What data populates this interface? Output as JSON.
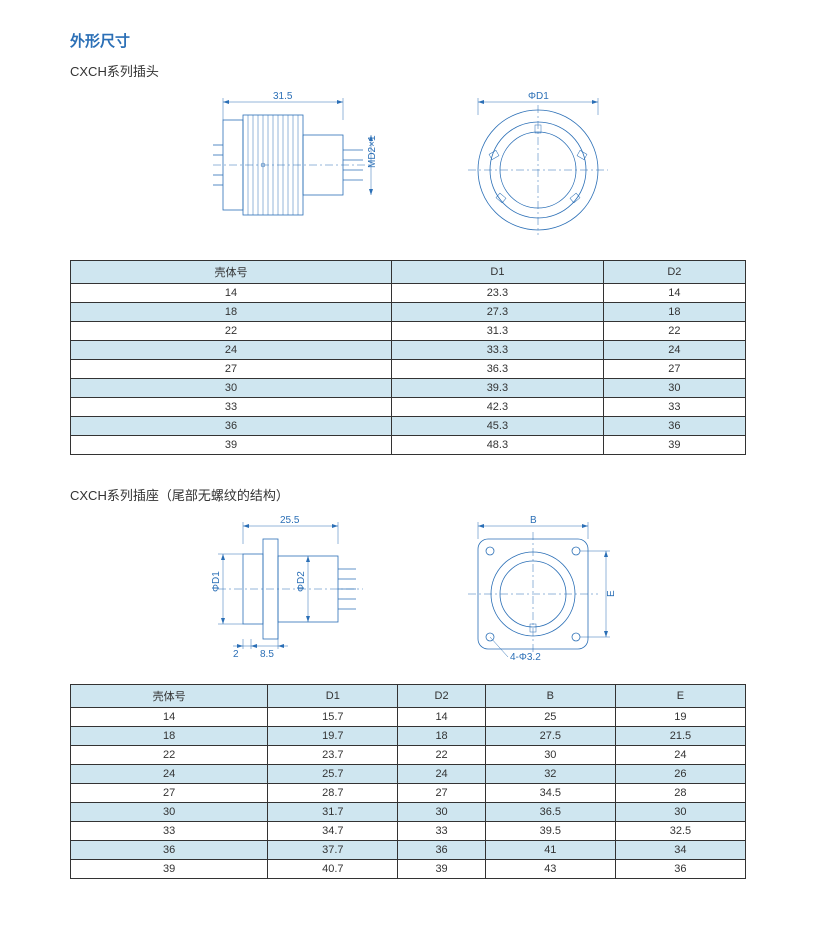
{
  "page": {
    "title": "外形尺寸",
    "section1_title": "CXCH系列插头",
    "section2_title": "CXCH系列插座（尾部无螺纹的结构）"
  },
  "diagram1": {
    "dim_top": "31.5",
    "dim_right": "MD2×1",
    "dim_phi": "ΦD1"
  },
  "diagram2": {
    "dim_top": "25.5",
    "dim_left": "ΦD1",
    "dim_mid": "ΦD2",
    "dim_b1": "2",
    "dim_b2": "8.5",
    "dim_B": "B",
    "dim_E": "E",
    "dim_hole": "4-Φ3.2"
  },
  "table1": {
    "columns": [
      "壳体号",
      "D1",
      "D2"
    ],
    "rows": [
      [
        "14",
        "23.3",
        "14"
      ],
      [
        "18",
        "27.3",
        "18"
      ],
      [
        "22",
        "31.3",
        "22"
      ],
      [
        "24",
        "33.3",
        "24"
      ],
      [
        "27",
        "36.3",
        "27"
      ],
      [
        "30",
        "39.3",
        "30"
      ],
      [
        "33",
        "42.3",
        "33"
      ],
      [
        "36",
        "45.3",
        "36"
      ],
      [
        "39",
        "48.3",
        "39"
      ]
    ],
    "header_bg": "#cfe6f0",
    "stripe_bg": "#cfe6f0"
  },
  "table2": {
    "columns": [
      "壳体号",
      "D1",
      "D2",
      "B",
      "E"
    ],
    "rows": [
      [
        "14",
        "15.7",
        "14",
        "25",
        "19"
      ],
      [
        "18",
        "19.7",
        "18",
        "27.5",
        "21.5"
      ],
      [
        "22",
        "23.7",
        "22",
        "30",
        "24"
      ],
      [
        "24",
        "25.7",
        "24",
        "32",
        "26"
      ],
      [
        "27",
        "28.7",
        "27",
        "34.5",
        "28"
      ],
      [
        "30",
        "31.7",
        "30",
        "36.5",
        "30"
      ],
      [
        "33",
        "34.7",
        "33",
        "39.5",
        "32.5"
      ],
      [
        "36",
        "37.7",
        "36",
        "41",
        "34"
      ],
      [
        "39",
        "40.7",
        "39",
        "43",
        "36"
      ]
    ]
  },
  "colors": {
    "line": "#2b6fb6",
    "header_bg": "#cfe6f0",
    "title": "#2b6fb6"
  }
}
